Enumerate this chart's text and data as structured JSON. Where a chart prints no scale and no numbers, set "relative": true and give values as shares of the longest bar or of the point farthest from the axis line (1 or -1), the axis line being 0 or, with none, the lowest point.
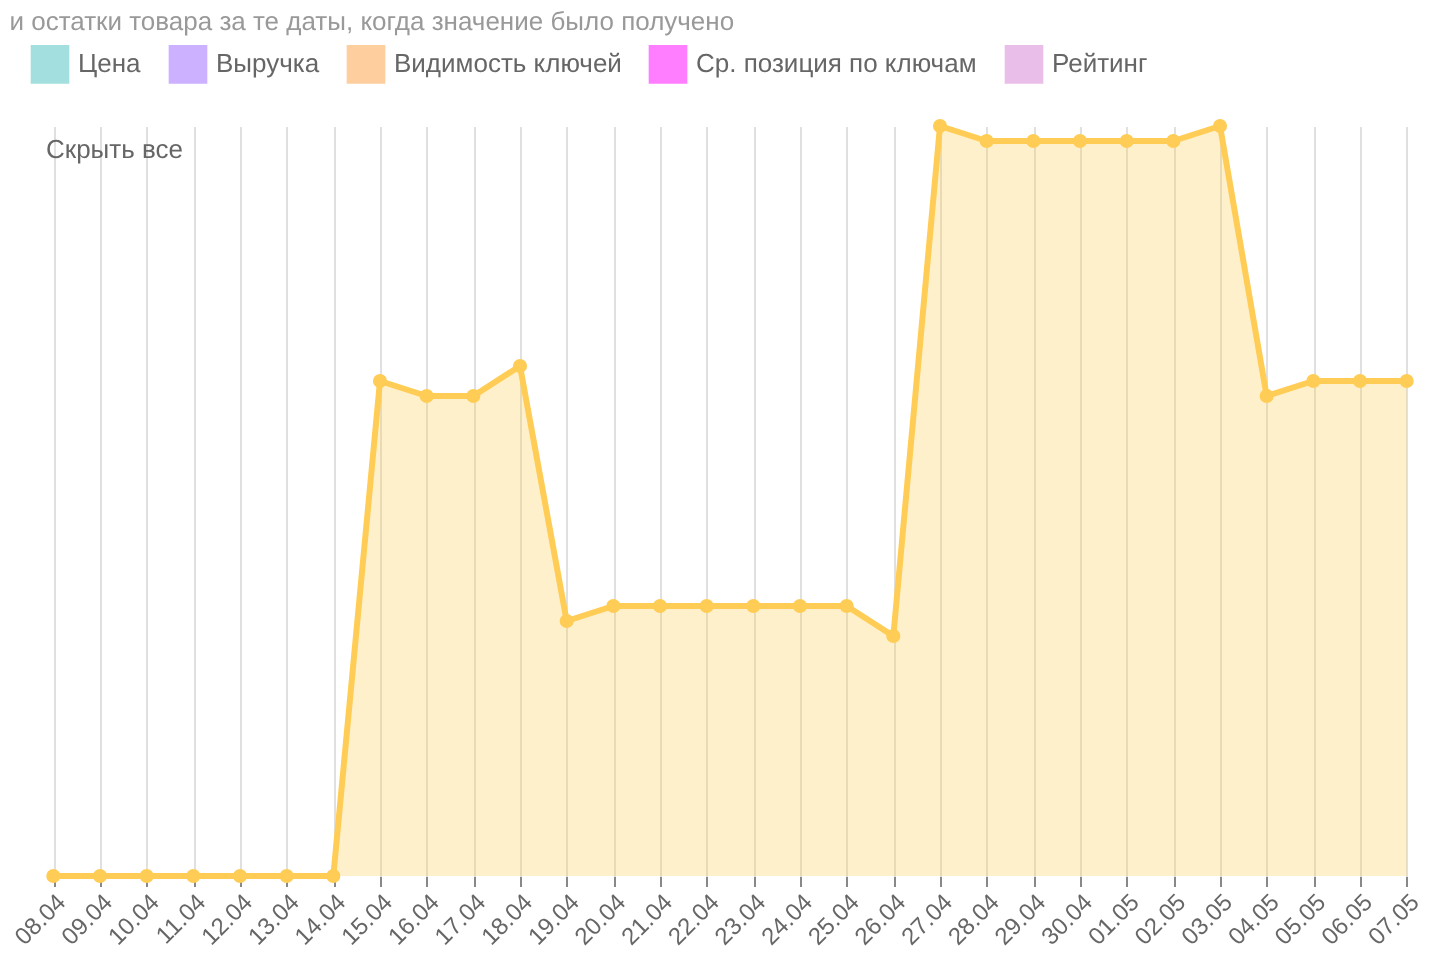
{
  "chart_data": {
    "type": "area",
    "title": "и остатки товара за те даты, когда значение было получено",
    "categories": [
      "08.04",
      "09.04",
      "10.04",
      "11.04",
      "12.04",
      "13.04",
      "14.04",
      "15.04",
      "16.04",
      "17.04",
      "18.04",
      "19.04",
      "20.04",
      "21.04",
      "22.04",
      "23.04",
      "24.04",
      "25.04",
      "26.04",
      "27.04",
      "28.04",
      "29.04",
      "30.04",
      "01.05",
      "02.05",
      "03.05",
      "04.05",
      "05.05",
      "06.05",
      "07.05"
    ],
    "relative": true,
    "grid": "x",
    "marker": "circle",
    "legend": "top",
    "annotations": [
      "Скрыть все"
    ],
    "series": [
      {
        "name": "Цена",
        "color": "#4bc0c0",
        "values": [
          null,
          null,
          null,
          null,
          null,
          null,
          null,
          null,
          null,
          null,
          null,
          null,
          null,
          null,
          null,
          null,
          null,
          null,
          null,
          null,
          null,
          null,
          null,
          null,
          null,
          null,
          null,
          null,
          null,
          null
        ]
      },
      {
        "name": "Выручка",
        "color": "#9966ff",
        "values": [
          null,
          null,
          null,
          null,
          null,
          null,
          null,
          null,
          null,
          null,
          null,
          null,
          null,
          null,
          null,
          null,
          null,
          null,
          null,
          null,
          null,
          null,
          null,
          null,
          null,
          null,
          null,
          null,
          null,
          null
        ]
      },
      {
        "name": "Видимость ключей",
        "color": "#ff9f40",
        "values": [
          null,
          null,
          null,
          null,
          null,
          null,
          null,
          null,
          null,
          null,
          null,
          null,
          null,
          null,
          null,
          null,
          null,
          null,
          null,
          null,
          null,
          null,
          null,
          null,
          null,
          null,
          null,
          null,
          null,
          null
        ]
      },
      {
        "name": "Ср. позиция по ключам",
        "color": "#ff00ff",
        "values": [
          null,
          null,
          null,
          null,
          null,
          null,
          null,
          null,
          null,
          null,
          null,
          null,
          null,
          null,
          null,
          null,
          null,
          null,
          null,
          null,
          null,
          null,
          null,
          null,
          null,
          null,
          null,
          null,
          null,
          null
        ]
      },
      {
        "color": "#ffcd56",
        "values": [
          0,
          0,
          0,
          0,
          0,
          0,
          0,
          0.66,
          0.64,
          0.64,
          0.68,
          0.34,
          0.36,
          0.36,
          0.36,
          0.36,
          0.36,
          0.36,
          0.32,
          1.0,
          0.98,
          0.98,
          0.98,
          0.98,
          0.98,
          1.0,
          0.64,
          0.66,
          0.66,
          0.66
        ]
      },
      {
        "name": "Рейтинг",
        "color": "#d580d5",
        "values": [
          null,
          null,
          null,
          null,
          null,
          null,
          null,
          null,
          null,
          null,
          null,
          null,
          null,
          null,
          null,
          null,
          null,
          null,
          null,
          null,
          null,
          null,
          null,
          null,
          null,
          null,
          null,
          null,
          null,
          null
        ]
      }
    ]
  }
}
